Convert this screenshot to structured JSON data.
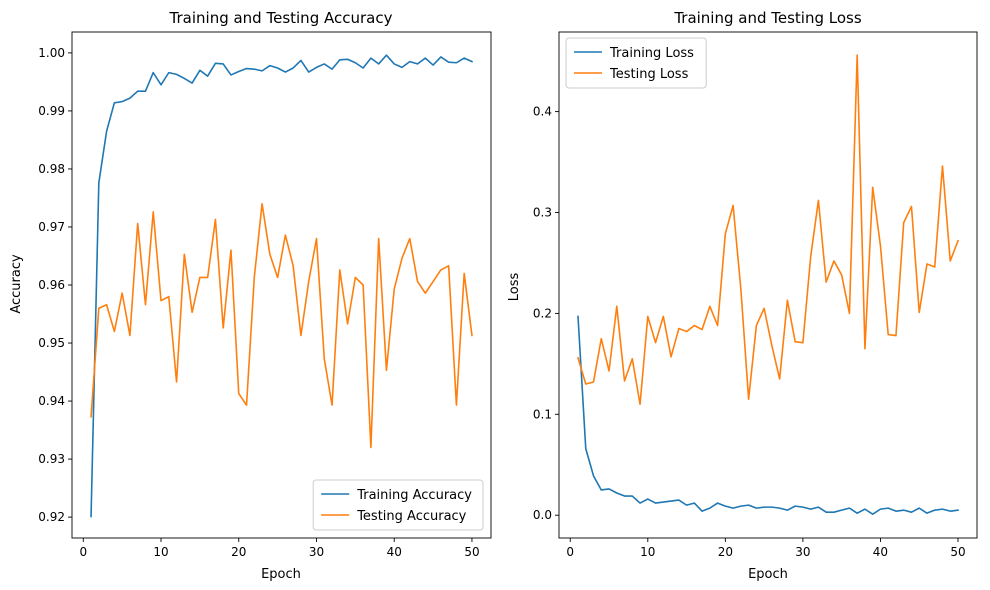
{
  "chart_data": [
    {
      "type": "line",
      "title": "Training and Testing Accuracy",
      "xlabel": "Epoch",
      "ylabel": "Accuracy",
      "xlim": [
        -1.45,
        52.45
      ],
      "ylim": [
        0.9164,
        1.0036
      ],
      "xticks": [
        0,
        10,
        20,
        30,
        40,
        50
      ],
      "xtick_labels": [
        "0",
        "10",
        "20",
        "30",
        "40",
        "50"
      ],
      "yticks": [
        0.92,
        0.93,
        0.94,
        0.95,
        0.96,
        0.97,
        0.98,
        0.99,
        1.0
      ],
      "ytick_labels": [
        "0.92",
        "0.93",
        "0.94",
        "0.95",
        "0.96",
        "0.97",
        "0.98",
        "0.99",
        "1.00"
      ],
      "legend_position": "lower-right",
      "grid": false,
      "x": [
        1,
        2,
        3,
        4,
        5,
        6,
        7,
        8,
        9,
        10,
        11,
        12,
        13,
        14,
        15,
        16,
        17,
        18,
        19,
        20,
        21,
        22,
        23,
        24,
        25,
        26,
        27,
        28,
        29,
        30,
        31,
        32,
        33,
        34,
        35,
        36,
        37,
        38,
        39,
        40,
        41,
        42,
        43,
        44,
        45,
        46,
        47,
        48,
        49,
        50
      ],
      "series": [
        {
          "name": "Training Accuracy",
          "color": "#1f77b4",
          "values": [
            0.9201,
            0.9776,
            0.9865,
            0.9914,
            0.9916,
            0.9922,
            0.9934,
            0.9934,
            0.9966,
            0.9945,
            0.9966,
            0.9963,
            0.9956,
            0.9948,
            0.997,
            0.996,
            0.9982,
            0.9981,
            0.9962,
            0.9968,
            0.9973,
            0.9972,
            0.9969,
            0.9978,
            0.9974,
            0.9967,
            0.9974,
            0.9987,
            0.9967,
            0.9975,
            0.9981,
            0.9972,
            0.9988,
            0.9989,
            0.9983,
            0.9974,
            0.9991,
            0.9981,
            0.9996,
            0.9981,
            0.9975,
            0.9985,
            0.9981,
            0.9991,
            0.9979,
            0.9993,
            0.9984,
            0.9983,
            0.9991,
            0.9985
          ]
        },
        {
          "name": "Testing Accuracy",
          "color": "#ff7f0e",
          "values": [
            0.9373,
            0.956,
            0.9566,
            0.952,
            0.9586,
            0.9513,
            0.9706,
            0.9566,
            0.9726,
            0.9573,
            0.958,
            0.9433,
            0.9653,
            0.9553,
            0.9613,
            0.9613,
            0.9713,
            0.9526,
            0.966,
            0.9413,
            0.9393,
            0.9613,
            0.974,
            0.9653,
            0.9613,
            0.9686,
            0.9633,
            0.9513,
            0.9606,
            0.968,
            0.9473,
            0.9393,
            0.9626,
            0.9533,
            0.9613,
            0.96,
            0.932,
            0.968,
            0.9453,
            0.9593,
            0.9646,
            0.968,
            0.9606,
            0.9586,
            0.9606,
            0.9626,
            0.9633,
            0.9393,
            0.962,
            0.9513
          ]
        }
      ]
    },
    {
      "type": "line",
      "title": "Training and Testing Loss",
      "xlabel": "Epoch",
      "ylabel": "Loss",
      "xlim": [
        -1.45,
        52.45
      ],
      "ylim": [
        -0.0226,
        0.4789
      ],
      "xticks": [
        0,
        10,
        20,
        30,
        40,
        50
      ],
      "xtick_labels": [
        "0",
        "10",
        "20",
        "30",
        "40",
        "50"
      ],
      "yticks": [
        0.0,
        0.1,
        0.2,
        0.3,
        0.4
      ],
      "ytick_labels": [
        "0.0",
        "0.1",
        "0.2",
        "0.3",
        "0.4"
      ],
      "legend_position": "upper-left",
      "grid": false,
      "x": [
        1,
        2,
        3,
        4,
        5,
        6,
        7,
        8,
        9,
        10,
        11,
        12,
        13,
        14,
        15,
        16,
        17,
        18,
        19,
        20,
        21,
        22,
        23,
        24,
        25,
        26,
        27,
        28,
        29,
        30,
        31,
        32,
        33,
        34,
        35,
        36,
        37,
        38,
        39,
        40,
        41,
        42,
        43,
        44,
        45,
        46,
        47,
        48,
        49,
        50
      ],
      "series": [
        {
          "name": "Training Loss",
          "color": "#1f77b4",
          "values": [
            0.197,
            0.066,
            0.039,
            0.025,
            0.026,
            0.022,
            0.019,
            0.019,
            0.012,
            0.016,
            0.012,
            0.013,
            0.014,
            0.015,
            0.01,
            0.012,
            0.004,
            0.007,
            0.012,
            0.009,
            0.007,
            0.009,
            0.01,
            0.007,
            0.008,
            0.008,
            0.007,
            0.005,
            0.009,
            0.008,
            0.006,
            0.008,
            0.003,
            0.003,
            0.005,
            0.007,
            0.002,
            0.006,
            0.001,
            0.006,
            0.007,
            0.004,
            0.005,
            0.003,
            0.007,
            0.002,
            0.005,
            0.006,
            0.004,
            0.005
          ]
        },
        {
          "name": "Testing Loss",
          "color": "#ff7f0e",
          "values": [
            0.156,
            0.13,
            0.132,
            0.175,
            0.143,
            0.207,
            0.133,
            0.155,
            0.11,
            0.197,
            0.171,
            0.197,
            0.157,
            0.185,
            0.182,
            0.188,
            0.184,
            0.207,
            0.188,
            0.279,
            0.307,
            0.224,
            0.115,
            0.188,
            0.205,
            0.168,
            0.135,
            0.213,
            0.172,
            0.171,
            0.256,
            0.312,
            0.231,
            0.252,
            0.238,
            0.2,
            0.456,
            0.165,
            0.325,
            0.267,
            0.179,
            0.178,
            0.29,
            0.306,
            0.201,
            0.249,
            0.246,
            0.346,
            0.252,
            0.272
          ]
        }
      ]
    }
  ]
}
